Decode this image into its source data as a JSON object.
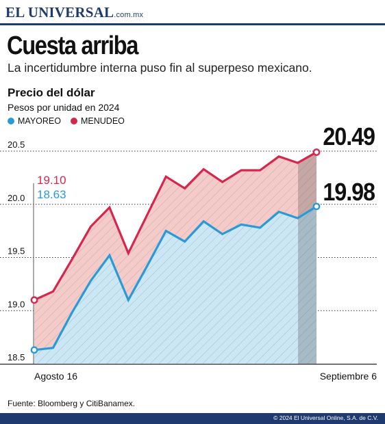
{
  "header": {
    "brand": "EL UNIVERSAL",
    "brand_suffix": ".com.mx"
  },
  "headline": {
    "title": "Cuesta arriba",
    "subtitle": "La incertidumbre interna puso fin al superpeso mexicano."
  },
  "chart_heading": {
    "title": "Precio del dólar",
    "subtitle": "Pesos por unidad en 2024"
  },
  "legend": [
    {
      "label": "MAYOREO",
      "color": "#2a9ad6"
    },
    {
      "label": "MENUDEO",
      "color": "#d7264b"
    }
  ],
  "chart_data": {
    "type": "area",
    "title": "Precio del dólar",
    "ylabel": "Pesos por unidad en 2024",
    "xlabel": "",
    "x_tick_labels": [
      "Agosto 16",
      "Septiembre 6"
    ],
    "ylim": [
      18.5,
      20.5
    ],
    "y_ticks": [
      18.5,
      19.0,
      19.5,
      20.0,
      20.5
    ],
    "y_tick_labels": [
      "18.5",
      "19.0",
      "19.5",
      "20.0",
      "20.5"
    ],
    "grid": true,
    "series": [
      {
        "name": "MAYOREO",
        "color": "#2a9ad6",
        "fill": "#cbe6f5",
        "values": [
          18.63,
          18.65,
          18.98,
          19.28,
          19.52,
          19.1,
          19.42,
          19.75,
          19.65,
          19.84,
          19.72,
          19.81,
          19.78,
          19.93,
          19.87,
          19.98
        ]
      },
      {
        "name": "MENUDEO",
        "color": "#d7264b",
        "fill": "#f4cbc9",
        "values": [
          19.1,
          19.18,
          19.48,
          19.79,
          19.97,
          19.54,
          19.9,
          20.26,
          20.15,
          20.33,
          20.21,
          20.32,
          20.32,
          20.45,
          20.39,
          20.49
        ]
      }
    ],
    "annotations": {
      "start": [
        "19.10",
        "18.63"
      ],
      "end": [
        "20.49",
        "19.98"
      ]
    }
  },
  "footer": {
    "source": "Fuente: Bloomberg y CitiBanamex.",
    "copyright": "© 2024 El Universal Online, S.A. de C.V."
  }
}
